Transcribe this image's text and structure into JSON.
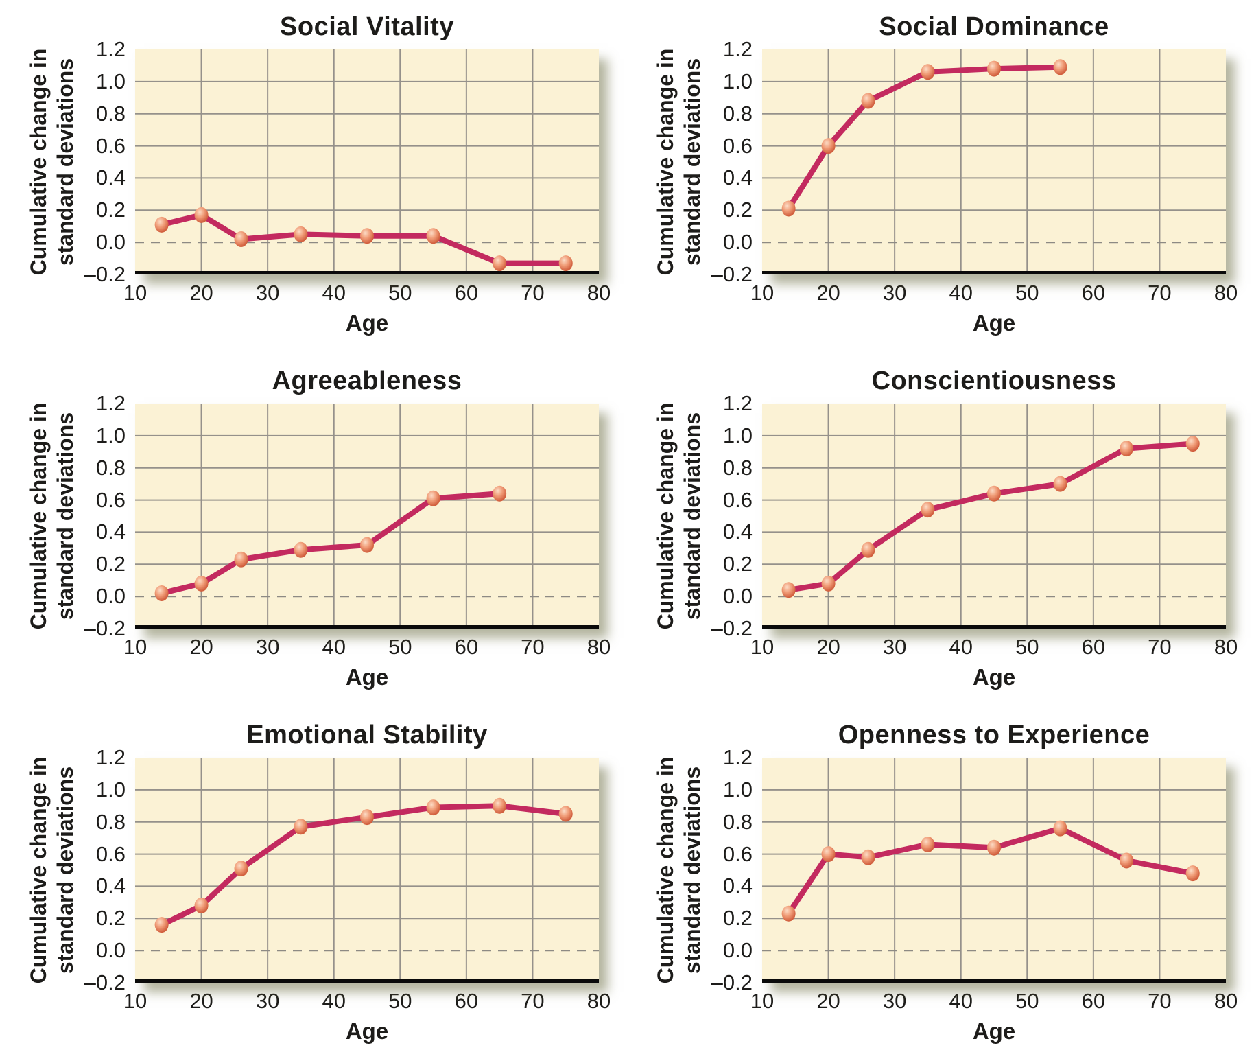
{
  "figure": {
    "background": "#ffffff",
    "description_note": "Six line charts of cumulative personality trait change across age"
  },
  "style": {
    "plot_background": "#FBF2D5",
    "grid_color": "#95918B",
    "zero_line_color": "#8D8A84",
    "series_line_color": "#C32A5F",
    "marker_highlight": "#FCDCC6",
    "marker_mid": "#F09C77",
    "marker_edge": "#D15F3E",
    "axis_line_color": "#0a0a0a",
    "text_color": "#1d1c1a",
    "shadow_color": "rgba(106,107,64,0.5)"
  },
  "axes": {
    "xlabel": "Age",
    "ylabel_line1": "Cumulative change in",
    "ylabel_line2": "standard deviations",
    "x_ticks": [
      10,
      20,
      30,
      40,
      50,
      60,
      70,
      80
    ],
    "y_tick_labels": [
      "1.2",
      "1.0",
      "0.8",
      "0.6",
      "0.4",
      "0.2",
      "0.0",
      "–0.2"
    ],
    "y_tick_values": [
      1.2,
      1.0,
      0.8,
      0.6,
      0.4,
      0.2,
      0.0,
      -0.2
    ],
    "xlim": [
      10,
      80
    ],
    "ylim": [
      -0.2,
      1.2
    ],
    "grid": true,
    "zero_reference_line": "dashed"
  },
  "chart_data": [
    {
      "type": "line",
      "title": "Social Vitality",
      "xlabel": "Age",
      "ylabel": "Cumulative change in standard deviations",
      "xlim": [
        10,
        80
      ],
      "ylim": [
        -0.2,
        1.2
      ],
      "x": [
        14,
        20,
        26,
        35,
        45,
        55,
        65,
        75
      ],
      "y": [
        0.11,
        0.17,
        0.02,
        0.05,
        0.04,
        0.04,
        -0.13,
        -0.13
      ]
    },
    {
      "type": "line",
      "title": "Social Dominance",
      "xlabel": "Age",
      "ylabel": "Cumulative change in standard deviations",
      "xlim": [
        10,
        80
      ],
      "ylim": [
        -0.2,
        1.2
      ],
      "x": [
        14,
        20,
        26,
        35,
        45,
        55
      ],
      "y": [
        0.21,
        0.6,
        0.88,
        1.06,
        1.08,
        1.09
      ]
    },
    {
      "type": "line",
      "title": "Agreeableness",
      "xlabel": "Age",
      "ylabel": "Cumulative change in standard deviations",
      "xlim": [
        10,
        80
      ],
      "ylim": [
        -0.2,
        1.2
      ],
      "x": [
        14,
        20,
        26,
        35,
        45,
        55,
        65
      ],
      "y": [
        0.02,
        0.08,
        0.23,
        0.29,
        0.32,
        0.61,
        0.64
      ]
    },
    {
      "type": "line",
      "title": "Conscientiousness",
      "xlabel": "Age",
      "ylabel": "Cumulative change in standard deviations",
      "xlim": [
        10,
        80
      ],
      "ylim": [
        -0.2,
        1.2
      ],
      "x": [
        14,
        20,
        26,
        35,
        45,
        55,
        65,
        75
      ],
      "y": [
        0.04,
        0.08,
        0.29,
        0.54,
        0.64,
        0.7,
        0.92,
        0.95
      ]
    },
    {
      "type": "line",
      "title": "Emotional Stability",
      "xlabel": "Age",
      "ylabel": "Cumulative change in standard deviations",
      "xlim": [
        10,
        80
      ],
      "ylim": [
        -0.2,
        1.2
      ],
      "x": [
        14,
        20,
        26,
        35,
        45,
        55,
        65,
        75
      ],
      "y": [
        0.16,
        0.28,
        0.51,
        0.77,
        0.83,
        0.89,
        0.9,
        0.85
      ]
    },
    {
      "type": "line",
      "title": "Openness to Experience",
      "xlabel": "Age",
      "ylabel": "Cumulative change in standard deviations",
      "xlim": [
        10,
        80
      ],
      "ylim": [
        -0.2,
        1.2
      ],
      "x": [
        14,
        20,
        26,
        35,
        45,
        55,
        65,
        75
      ],
      "y": [
        0.23,
        0.6,
        0.58,
        0.66,
        0.64,
        0.76,
        0.56,
        0.48
      ]
    }
  ]
}
